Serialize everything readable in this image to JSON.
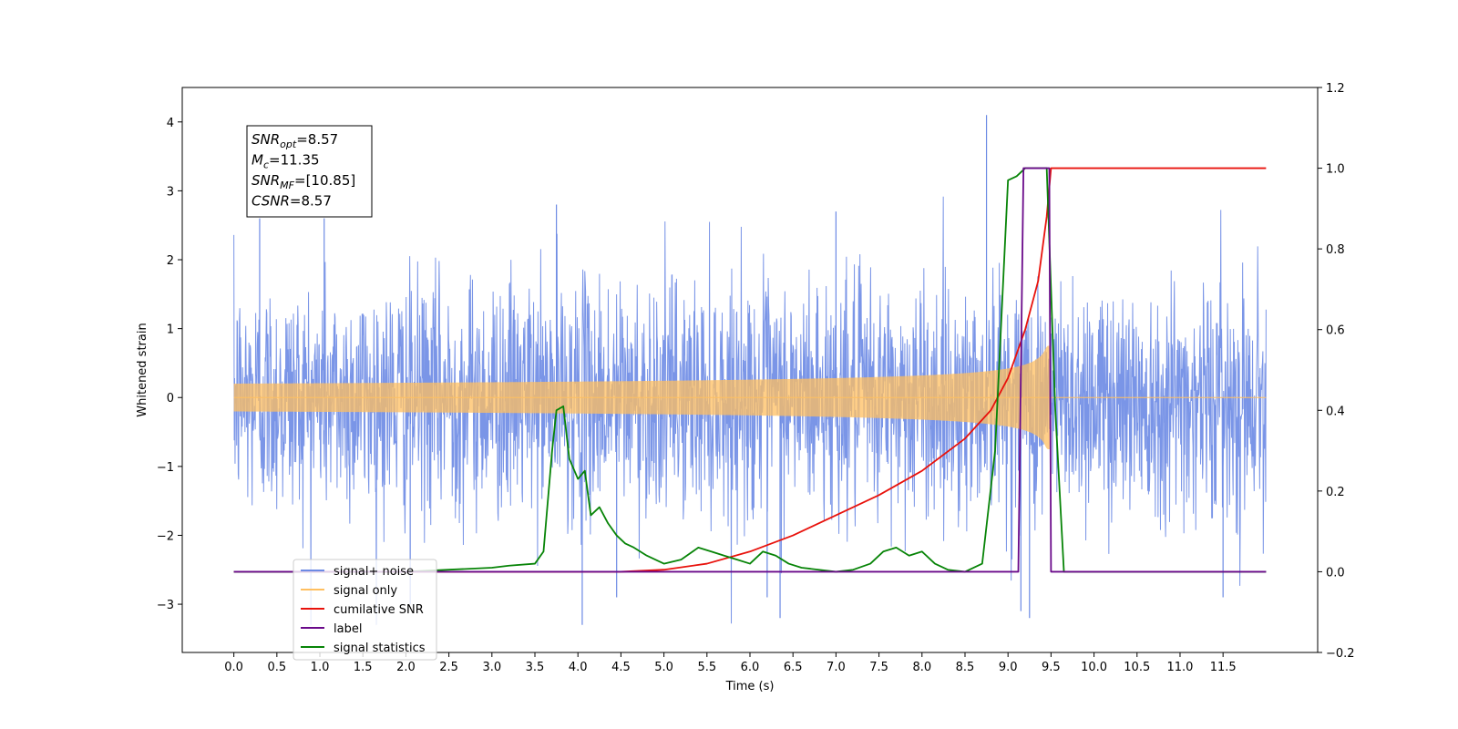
{
  "chart_data": {
    "type": "line",
    "xlabel": "Time (s)",
    "ylabel": "Whitened strain",
    "xlim": [
      -0.6,
      12.6
    ],
    "ylim": [
      -3.7,
      4.5
    ],
    "y2lim": [
      -0.2,
      1.2
    ],
    "x_ticks": [
      "0.0",
      "0.5",
      "1.0",
      "1.5",
      "2.0",
      "2.5",
      "3.0",
      "3.5",
      "4.0",
      "4.5",
      "5.0",
      "5.5",
      "6.0",
      "6.5",
      "7.0",
      "7.5",
      "8.0",
      "8.5",
      "9.0",
      "9.5",
      "10.0",
      "10.5",
      "11.0",
      "11.5"
    ],
    "y_ticks": [
      "4",
      "3",
      "2",
      "1",
      "0",
      "−1",
      "−2",
      "−3"
    ],
    "y2_ticks": [
      "1.2",
      "1.0",
      "0.8",
      "0.6",
      "0.4",
      "0.2",
      "0.0",
      "−0.2"
    ],
    "grid": false,
    "legend_position": "lower-left",
    "annotation": {
      "lines": [
        {
          "sym": "SNR",
          "sub": "opt",
          "value": "=8.57"
        },
        {
          "sym": "M",
          "sub": "c",
          "value": "=11.35"
        },
        {
          "sym": "SNR",
          "sub": "MF",
          "value": "=[10.85]"
        },
        {
          "sym": "CSNR",
          "sub": "",
          "value": "=8.57"
        }
      ]
    },
    "series": [
      {
        "name": "signal+ noise",
        "color": "#6c8ae4",
        "axis": "left",
        "kind": "noise",
        "x_range": [
          0.0,
          12.0
        ],
        "std": 0.85,
        "min": -3.3,
        "max": 4.1
      },
      {
        "name": "signal only",
        "color": "#ffbf60",
        "axis": "left",
        "kind": "chirp",
        "x_range": [
          0.0,
          9.5
        ],
        "peak_amplitude": 0.75,
        "merger_time": 9.5
      },
      {
        "name": "cumilative SNR",
        "color": "#e8120c",
        "axis": "right",
        "x": [
          0.0,
          4.5,
          5.0,
          5.5,
          6.0,
          6.5,
          7.0,
          7.5,
          8.0,
          8.5,
          8.8,
          9.0,
          9.2,
          9.35,
          9.45,
          9.5,
          12.0
        ],
        "y": [
          0.0,
          0.0,
          0.005,
          0.02,
          0.05,
          0.09,
          0.14,
          0.19,
          0.25,
          0.33,
          0.4,
          0.48,
          0.6,
          0.72,
          0.88,
          1.0,
          1.0
        ]
      },
      {
        "name": "label",
        "color": "#6a0a8a",
        "axis": "right",
        "x": [
          0.0,
          9.12,
          9.18,
          9.48,
          9.5,
          12.0
        ],
        "y": [
          0.0,
          0.0,
          1.0,
          1.0,
          0.0,
          0.0
        ]
      },
      {
        "name": "signal statistics",
        "color": "#078407",
        "axis": "right",
        "x": [
          0.0,
          2.0,
          2.5,
          3.0,
          3.2,
          3.5,
          3.6,
          3.7,
          3.75,
          3.83,
          3.9,
          4.0,
          4.08,
          4.15,
          4.25,
          4.35,
          4.45,
          4.55,
          4.65,
          4.8,
          5.0,
          5.2,
          5.4,
          5.55,
          5.7,
          5.85,
          6.0,
          6.15,
          6.3,
          6.45,
          6.6,
          6.8,
          7.0,
          7.2,
          7.4,
          7.55,
          7.7,
          7.85,
          8.0,
          8.15,
          8.3,
          8.5,
          8.7,
          8.85,
          9.0,
          9.1,
          9.2,
          9.3,
          9.45,
          9.55,
          9.65,
          12.0
        ],
        "y": [
          0.0,
          0.0,
          0.005,
          0.01,
          0.015,
          0.02,
          0.05,
          0.3,
          0.4,
          0.41,
          0.28,
          0.23,
          0.25,
          0.14,
          0.16,
          0.12,
          0.09,
          0.07,
          0.06,
          0.04,
          0.02,
          0.03,
          0.06,
          0.05,
          0.04,
          0.03,
          0.02,
          0.05,
          0.04,
          0.02,
          0.01,
          0.005,
          0.0,
          0.005,
          0.02,
          0.05,
          0.06,
          0.04,
          0.05,
          0.02,
          0.005,
          0.0,
          0.02,
          0.3,
          0.97,
          0.98,
          1.0,
          1.0,
          1.0,
          0.4,
          0.0,
          0.0
        ]
      }
    ]
  }
}
